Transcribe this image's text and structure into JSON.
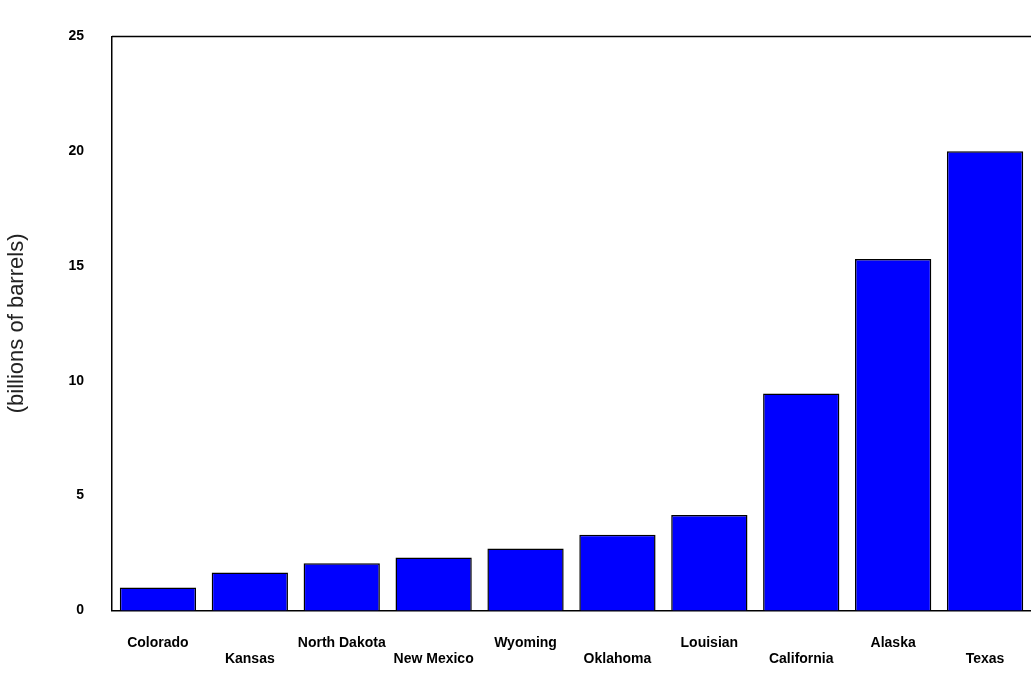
{
  "chart_data": {
    "type": "bar",
    "ylabel": "(billions of barrels)",
    "categories": [
      "Colorado",
      "Kansas",
      "North Dakota",
      "New Mexico",
      "Wyoming",
      "Oklahoma",
      "Louisian",
      "California",
      "Alaska",
      "Texas"
    ],
    "values": [
      1.0,
      1.65,
      2.05,
      2.3,
      2.7,
      3.3,
      4.15,
      9.45,
      15.3,
      20.0
    ],
    "color": "#0000ff",
    "ylim": [
      0,
      25
    ],
    "yticks": [
      0,
      5,
      10,
      15,
      20,
      25
    ],
    "grid": false,
    "legend": false
  }
}
